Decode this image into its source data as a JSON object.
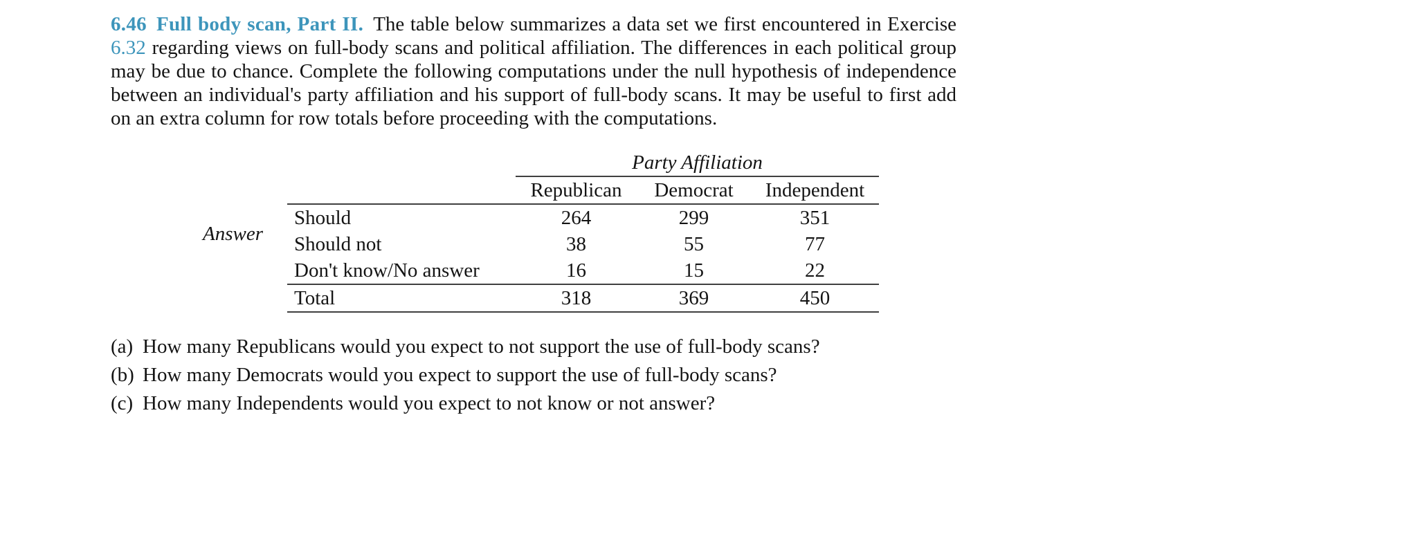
{
  "colors": {
    "accent": "#3d95bb"
  },
  "exercise": {
    "number": "6.46",
    "title": "Full body scan, Part II.",
    "intro_before_ref": "The table below summarizes a data set we first encountered in Exercise ",
    "ref": "6.32",
    "intro_after_ref": " regarding views on full-body scans and political affiliation. The differences in each political group may be due to chance. Complete the following computations under the null hypothesis of independence between an individual's party affiliation and his support of full-body scans. It may be useful to first add on an extra column for row totals before proceeding with the computations."
  },
  "table": {
    "col_group_title": "Party Affiliation",
    "row_group_title": "Answer",
    "columns": [
      "Republican",
      "Democrat",
      "Independent"
    ],
    "rows": [
      {
        "label": "Should",
        "values": [
          264,
          299,
          351
        ]
      },
      {
        "label": "Should not",
        "values": [
          38,
          55,
          77
        ]
      },
      {
        "label": "Don't know/No answer",
        "values": [
          16,
          15,
          22
        ]
      },
      {
        "label": "Total",
        "values": [
          318,
          369,
          450
        ]
      }
    ]
  },
  "questions": [
    {
      "marker": "(a)",
      "text": "How many Republicans would you expect to not support the use of full-body scans?"
    },
    {
      "marker": "(b)",
      "text": "How many Democrats would you expect to support the use of full-body scans?"
    },
    {
      "marker": "(c)",
      "text": "How many Independents would you expect to not know or not answer?"
    }
  ]
}
